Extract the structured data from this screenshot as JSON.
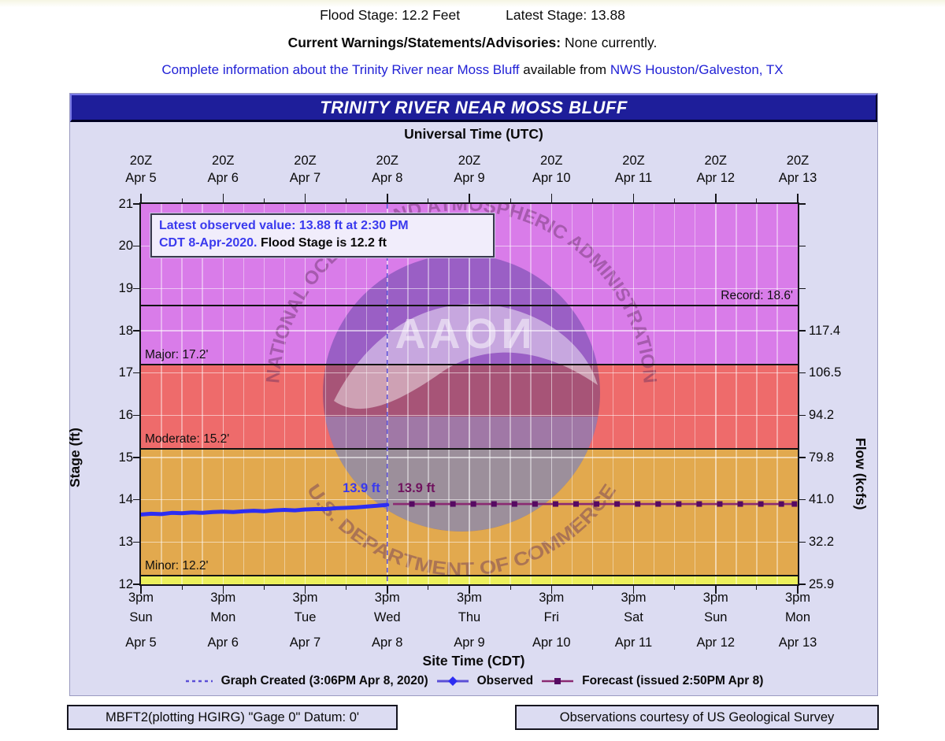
{
  "header": {
    "flood_stage_text": "Flood Stage: 12.2 Feet",
    "latest_stage_text": "Latest Stage: 13.88",
    "warnings_label": "Current Warnings/Statements/Advisories:",
    "warnings_value": "None currently.",
    "info_link1": "Complete information about the Trinity River near Moss Bluff",
    "info_middle": "available from",
    "info_link2": "NWS Houston/Galveston, TX"
  },
  "chart": {
    "title": "TRINITY RIVER NEAR MOSS BLUFF",
    "top_axis_title": "Universal Time (UTC)",
    "bottom_axis_title": "Site Time (CDT)",
    "left_axis_title": "Stage (ft)",
    "right_axis_title": "Flow (kcfs)",
    "annotation": {
      "line1_blue": "Latest observed value: 13.88 ft at 2:30 PM",
      "line2_blue": "CDT 8-Apr-2020.",
      "line2_black": "Flood Stage is 12.2 ft"
    },
    "watermark": {
      "arc_top": "NATIONAL OCEANIC AND ATMOSPHERIC ADMINISTRATION",
      "arc_bottom": "U.S. DEPARTMENT OF COMMERCE",
      "center_text": "NOAA"
    },
    "footer_left": "MBFT2(plotting HGIRG) \"Gage 0\" Datum: 0'",
    "footer_right": "Observations courtesy of US Geological Survey"
  },
  "colors": {
    "title_bar_bg": "#1e1e9a",
    "container_bg": "#dcdcf2",
    "zone_major": "#d97ce9",
    "zone_moderate": "#ee6b6b",
    "zone_minor": "#e2a94e",
    "zone_action": "#ecf05c",
    "observed": "#2d2df2",
    "forecast_line": "#8a2a72",
    "forecast_marker": "#560a62",
    "graph_created": "#5b4fd6",
    "flood_line": "#141414",
    "link": "#2121d6",
    "annotation_blue": "#3a3aee",
    "forecast_label": "#70135f"
  },
  "chart_data": {
    "type": "line",
    "title": "TRINITY RIVER NEAR MOSS BLUFF",
    "flood_stage_ft": 12.2,
    "latest_observed": {
      "value_ft": 13.88,
      "time": "2:30 PM CDT 8-Apr-2020"
    },
    "x_axis": {
      "days": 8,
      "top_ticks": [
        {
          "z": "20Z",
          "date": "Apr 5"
        },
        {
          "z": "20Z",
          "date": "Apr 6"
        },
        {
          "z": "20Z",
          "date": "Apr 7"
        },
        {
          "z": "20Z",
          "date": "Apr 8"
        },
        {
          "z": "20Z",
          "date": "Apr 9"
        },
        {
          "z": "20Z",
          "date": "Apr 10"
        },
        {
          "z": "20Z",
          "date": "Apr 11"
        },
        {
          "z": "20Z",
          "date": "Apr 12"
        },
        {
          "z": "20Z",
          "date": "Apr 13"
        }
      ],
      "bottom_ticks": [
        {
          "time": "3pm",
          "day": "Sun",
          "date": "Apr 5"
        },
        {
          "time": "3pm",
          "day": "Mon",
          "date": "Apr 6"
        },
        {
          "time": "3pm",
          "day": "Tue",
          "date": "Apr 7"
        },
        {
          "time": "3pm",
          "day": "Wed",
          "date": "Apr 8"
        },
        {
          "time": "3pm",
          "day": "Thu",
          "date": "Apr 9"
        },
        {
          "time": "3pm",
          "day": "Fri",
          "date": "Apr 10"
        },
        {
          "time": "3pm",
          "day": "Sat",
          "date": "Apr 11"
        },
        {
          "time": "3pm",
          "day": "Sun",
          "date": "Apr 12"
        },
        {
          "time": "3pm",
          "day": "Mon",
          "date": "Apr 13"
        }
      ]
    },
    "y_axis": {
      "ylim": [
        12,
        21
      ],
      "stage_ticks": [
        21,
        20,
        19,
        18,
        17,
        16,
        15,
        14,
        13,
        12
      ],
      "flow_ticks": [
        {
          "stage": 18,
          "label": "117.4"
        },
        {
          "stage": 17,
          "label": "106.5"
        },
        {
          "stage": 16,
          "label": "94.2"
        },
        {
          "stage": 15,
          "label": "79.8"
        },
        {
          "stage": 14,
          "label": "41.0"
        },
        {
          "stage": 13,
          "label": "32.2"
        },
        {
          "stage": 12,
          "label": "25.9"
        }
      ]
    },
    "zones": [
      {
        "name": "major-flood",
        "from": 17.2,
        "to": 21,
        "color": "#d97ce9"
      },
      {
        "name": "moderate-flood",
        "from": 15.2,
        "to": 17.2,
        "color": "#ee6b6b"
      },
      {
        "name": "minor-flood",
        "from": 12.2,
        "to": 15.2,
        "color": "#e2a94e"
      },
      {
        "name": "action",
        "from": 12,
        "to": 12.2,
        "color": "#ecf05c"
      }
    ],
    "flood_levels": [
      {
        "name": "record",
        "stage": 18.6,
        "label": "Record: 18.6'",
        "label_side": "right"
      },
      {
        "name": "major",
        "stage": 17.2,
        "label": "Major: 17.2'",
        "label_side": "left"
      },
      {
        "name": "moderate",
        "stage": 15.2,
        "label": "Moderate: 15.2'",
        "label_side": "left"
      },
      {
        "name": "minor",
        "stage": 12.2,
        "label": "Minor: 12.2'",
        "label_side": "left"
      }
    ],
    "graph_created_day": 3.0,
    "observed": {
      "name": "Observed",
      "end_label": "13.9 ft",
      "points": [
        [
          0.0,
          13.65
        ],
        [
          0.125,
          13.67
        ],
        [
          0.25,
          13.66
        ],
        [
          0.375,
          13.69
        ],
        [
          0.5,
          13.68
        ],
        [
          0.625,
          13.7
        ],
        [
          0.75,
          13.69
        ],
        [
          0.875,
          13.71
        ],
        [
          1.0,
          13.72
        ],
        [
          1.125,
          13.71
        ],
        [
          1.25,
          13.73
        ],
        [
          1.375,
          13.74
        ],
        [
          1.5,
          13.73
        ],
        [
          1.625,
          13.75
        ],
        [
          1.75,
          13.76
        ],
        [
          1.875,
          13.75
        ],
        [
          2.0,
          13.77
        ],
        [
          2.125,
          13.78
        ],
        [
          2.25,
          13.78
        ],
        [
          2.375,
          13.8
        ],
        [
          2.5,
          13.81
        ],
        [
          2.625,
          13.82
        ],
        [
          2.75,
          13.84
        ],
        [
          2.875,
          13.86
        ],
        [
          3.0,
          13.88
        ]
      ]
    },
    "forecast": {
      "name": "Forecast",
      "start_label": "13.9 ft",
      "value_ft": 13.9,
      "start_day": 3.07,
      "end_day": 7.96,
      "marker_start": 3.3,
      "marker_step": 0.25,
      "marker_count": 19
    },
    "legend": [
      {
        "key": "graph-created",
        "label": "Graph Created (3:06PM Apr 8, 2020)"
      },
      {
        "key": "observed",
        "label": "Observed"
      },
      {
        "key": "forecast",
        "label": "Forecast (issued 2:50PM Apr 8)"
      }
    ]
  }
}
